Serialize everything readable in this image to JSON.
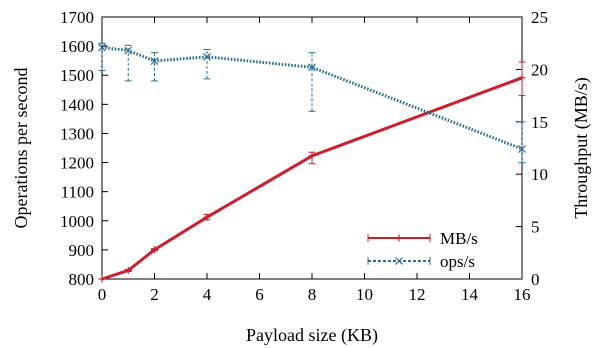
{
  "chart_data": {
    "type": "line",
    "xlabel": "Payload size (KB)",
    "ylabel_left": "Operations per second",
    "ylabel_right": "Throughput (MB/s)",
    "x_range": [
      0,
      16
    ],
    "x_ticks": [
      "0",
      "2",
      "4",
      "6",
      "8",
      "10",
      "12",
      "14",
      "16"
    ],
    "y_left_range": [
      800,
      1700
    ],
    "y_left_ticks": [
      "800",
      "900",
      "1000",
      "1100",
      "1200",
      "1300",
      "1400",
      "1500",
      "1600",
      "1700"
    ],
    "y_right_range": [
      0,
      25
    ],
    "y_right_ticks": [
      "0",
      "5",
      "10",
      "15",
      "20",
      "25"
    ],
    "legend_position": "bottom-right",
    "grid": false,
    "series": [
      {
        "name": "MB/s",
        "axis": "right",
        "color": "#cc1f2e",
        "style": "solid",
        "marker": "plus",
        "x": [
          0,
          1,
          2,
          4,
          8,
          16
        ],
        "y": [
          0,
          0.82,
          2.8,
          5.9,
          11.75,
          19.2
        ],
        "err_low": [
          0,
          0.1,
          0.1,
          0.25,
          0.75,
          1.7
        ],
        "err_high": [
          0,
          0.1,
          0.1,
          0.25,
          0.35,
          1.5
        ]
      },
      {
        "name": "ops/s",
        "axis": "right",
        "color": "#2a6e96",
        "style": "dotted",
        "marker": "cross",
        "x": [
          0,
          1,
          2,
          4,
          8,
          16
        ],
        "y": [
          22.1,
          21.8,
          20.8,
          21.2,
          20.2,
          12.4
        ],
        "err_low": [
          2.2,
          2.9,
          1.9,
          2.1,
          4.2,
          1.3
        ],
        "err_high": [
          0.4,
          0.5,
          0.8,
          0.7,
          1.4,
          2.6
        ]
      }
    ]
  }
}
